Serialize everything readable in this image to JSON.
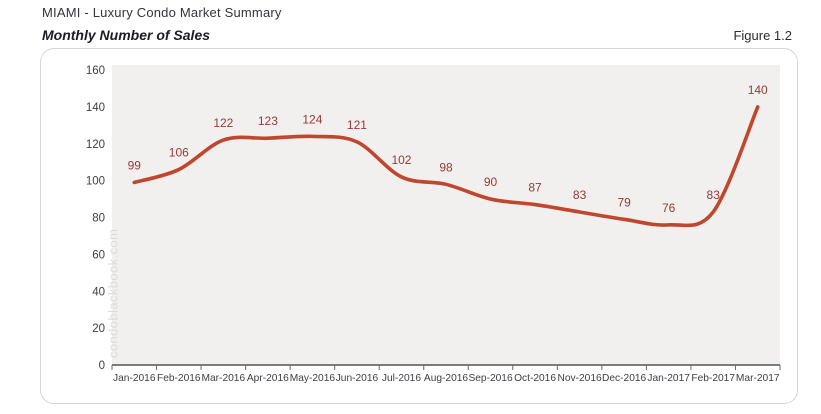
{
  "header": {
    "title": "MIAMI - Luxury Condo Market Summary",
    "subtitle": "Monthly Number of Sales",
    "figure_label": "Figure 1.2"
  },
  "watermark": "condoblackbook.com",
  "colors": {
    "line": "#c0462e",
    "data_label": "#973934",
    "plot_background": "#f2f0ef",
    "axis": "#6a6a6a",
    "axis_text": "#3f4045",
    "watermark": "#dbdbdb"
  },
  "chart_data": {
    "type": "line",
    "title": "Monthly Number of Sales",
    "categories": [
      "Jan-2016",
      "Feb-2016",
      "Mar-2016",
      "Apr-2016",
      "May-2016",
      "Jun-2016",
      "Jul-2016",
      "Aug-2016",
      "Sep-2016",
      "Oct-2016",
      "Nov-2016",
      "Dec-2016",
      "Jan-2017",
      "Feb-2017",
      "Mar-2017"
    ],
    "values": [
      99,
      106,
      122,
      123,
      124,
      121,
      102,
      98,
      90,
      87,
      83,
      79,
      76,
      83,
      140
    ],
    "xlabel": "",
    "ylabel": "",
    "ylim": [
      0,
      160
    ],
    "ytick_step": 20,
    "grid": false,
    "legend": "none",
    "smooth": true,
    "data_labels": true
  }
}
